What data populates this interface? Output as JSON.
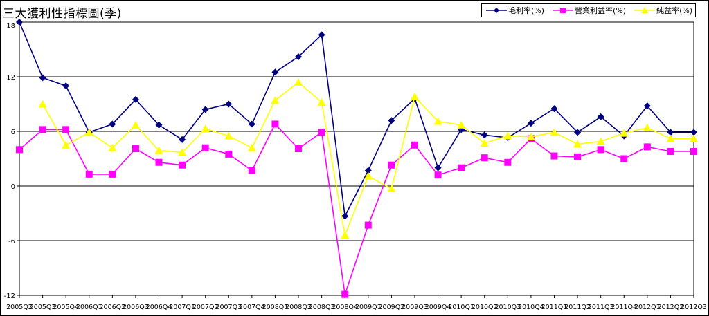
{
  "colors": {
    "gross": "#000080",
    "operating": "#ff00ff",
    "net": "#ffff00",
    "grid": "#000000",
    "background": "#ffffff"
  },
  "chart_data": {
    "type": "line",
    "title": "三大獲利性指標圖(季)",
    "xlabel": "",
    "ylabel": "",
    "ylim": [
      -12,
      18
    ],
    "yticks": [
      18,
      12,
      6,
      0,
      -6,
      -12
    ],
    "grid": "horizontal",
    "legend_position": "top-right",
    "categories": [
      "2005Q2",
      "2005Q3",
      "2005Q4",
      "2006Q1",
      "2006Q2",
      "2006Q3",
      "2006Q4",
      "2007Q1",
      "2007Q2",
      "2007Q3",
      "2007Q4",
      "2008Q1",
      "2008Q2",
      "2008Q3",
      "2008Q4",
      "2009Q1",
      "2009Q2",
      "2009Q3",
      "2009Q4",
      "2010Q1",
      "2010Q2",
      "2010Q3",
      "2010Q4",
      "2011Q1",
      "2011Q2",
      "2011Q3",
      "2011Q4",
      "2012Q1",
      "2012Q2",
      "2012Q3"
    ],
    "series": [
      {
        "name": "毛利率(%)",
        "marker": "diamond",
        "values": [
          18.0,
          11.9,
          11.0,
          5.9,
          6.8,
          9.5,
          6.7,
          5.1,
          8.4,
          9.0,
          6.8,
          12.5,
          14.2,
          16.6,
          -3.3,
          1.7,
          7.2,
          9.6,
          2.0,
          6.2,
          5.6,
          5.3,
          6.9,
          8.5,
          5.9,
          7.6,
          5.5,
          8.8,
          5.9,
          5.9
        ]
      },
      {
        "name": "營業利益率(%)",
        "marker": "square",
        "values": [
          4.0,
          6.2,
          6.2,
          1.3,
          1.3,
          4.1,
          2.6,
          2.3,
          4.2,
          3.5,
          1.7,
          6.8,
          4.1,
          5.9,
          -11.9,
          -4.3,
          2.3,
          4.5,
          1.2,
          2.0,
          3.1,
          2.6,
          5.2,
          3.3,
          3.2,
          4.0,
          3.0,
          4.3,
          3.8,
          3.8
        ]
      },
      {
        "name": "純益率(%)",
        "marker": "triangle",
        "values": [
          null,
          9.0,
          4.5,
          5.9,
          4.2,
          6.7,
          3.9,
          3.7,
          6.3,
          5.5,
          4.2,
          9.4,
          11.4,
          9.2,
          -5.4,
          1.1,
          -0.3,
          9.8,
          7.1,
          6.7,
          4.7,
          5.5,
          5.4,
          5.9,
          4.6,
          4.9,
          5.8,
          6.4,
          5.2,
          5.2
        ]
      }
    ]
  }
}
